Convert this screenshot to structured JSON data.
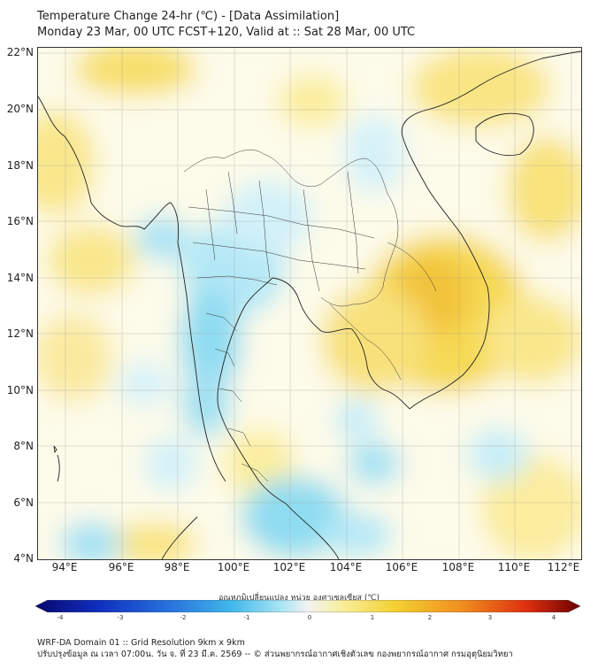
{
  "title": {
    "line1": "Temperature Change 24-hr (℃) - [Data Assimilation]",
    "line2": "Monday 23 Mar, 00 UTC FCST+120, Valid at :: Sat 28 Mar, 00 UTC"
  },
  "map": {
    "lat_labels": [
      "22°N",
      "20°N",
      "18°N",
      "16°N",
      "14°N",
      "12°N",
      "10°N",
      "8°N",
      "6°N",
      "4°N"
    ],
    "lon_labels": [
      "94°E",
      "96°E",
      "98°E",
      "100°E",
      "102°E",
      "104°E",
      "106°E",
      "108°E",
      "110°E",
      "112°E"
    ],
    "lat_range": [
      4,
      22.2
    ],
    "lon_range": [
      93,
      112.3
    ],
    "field_colors": {
      "cool": "#7fd7f0",
      "light_cool": "#c8eef8",
      "neutral": "#fdfbe9",
      "warm": "#f8e27a",
      "hot": "#f3c23a"
    }
  },
  "colorbar": {
    "title": "อุณหภูมิเปลี่ยนแปลง หน่วย องศาเซลเซียส (℃)",
    "ticks": [
      "-4",
      "-3",
      "-2",
      "-1",
      "0",
      "1",
      "2",
      "3",
      "4"
    ],
    "colors": [
      "#07076e",
      "#1030c0",
      "#2a7ae0",
      "#40b8ec",
      "#a8e4f4",
      "#f2f2f2",
      "#f8f0a0",
      "#f4d030",
      "#f09020",
      "#e03010",
      "#6a0000"
    ]
  },
  "footer": {
    "line1": "WRF-DA Domain 01 :: Grid Resolution 9km x 9km",
    "line2": "ปรับปรุงข้อมูล ณ เวลา 07:00น. วัน จ. ที่ 23 มี.ค. 2569 -- © ส่วนพยากรณ์อากาศเชิงตัวเลข กองพยากรณ์อากาศ กรมอุตุนิยมวิทยา"
  }
}
